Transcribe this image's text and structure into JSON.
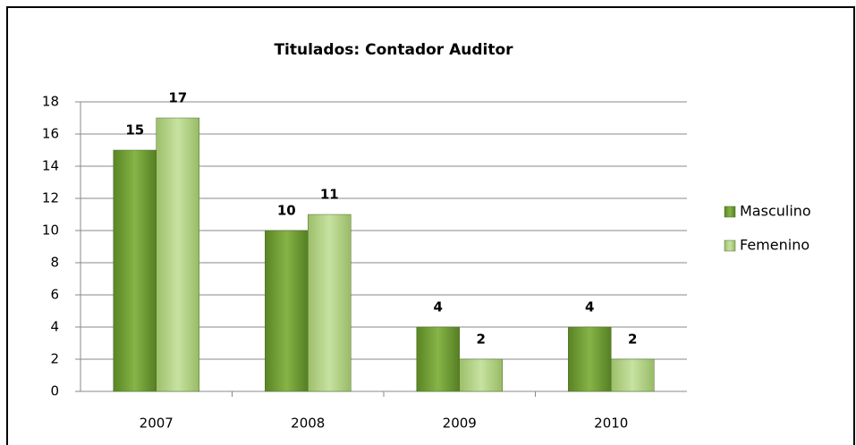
{
  "chart_data": {
    "type": "bar",
    "title": "Titulados: Contador Auditor",
    "categories": [
      "2007",
      "2008",
      "2009",
      "2010"
    ],
    "series": [
      {
        "name": "Masculino",
        "color": "#77a33a",
        "values": [
          15,
          10,
          4,
          4
        ]
      },
      {
        "name": "Femenino",
        "color": "#b5d48a",
        "values": [
          17,
          11,
          2,
          2
        ]
      }
    ],
    "ylim": [
      0,
      18
    ],
    "yticks": [
      0,
      2,
      4,
      6,
      8,
      10,
      12,
      14,
      16,
      18
    ],
    "grid": true,
    "legend": "right"
  }
}
